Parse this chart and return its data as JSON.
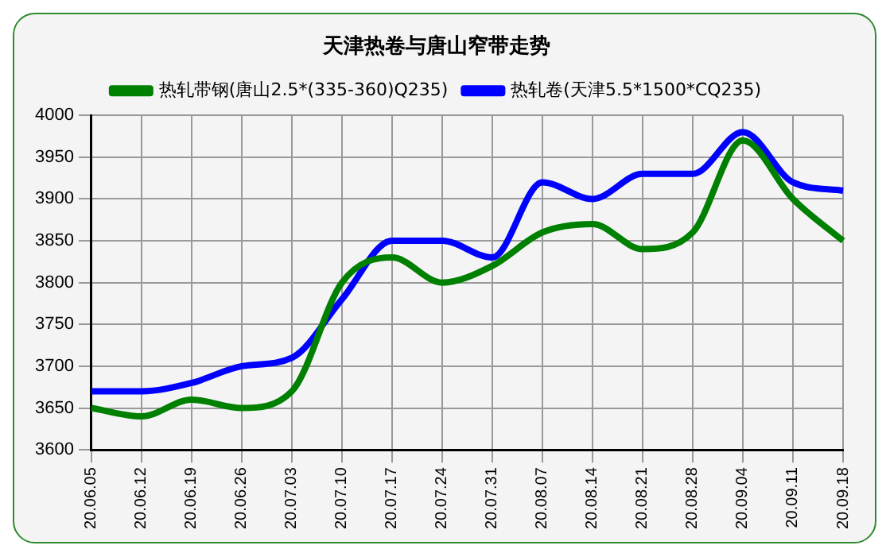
{
  "chart_data": {
    "type": "line",
    "title": "天津热卷与唐山窄带走势",
    "categories": [
      "20.06.05",
      "20.06.12",
      "20.06.19",
      "20.06.26",
      "20.07.03",
      "20.07.10",
      "20.07.17",
      "20.07.24",
      "20.07.31",
      "20.08.07",
      "20.08.14",
      "20.08.21",
      "20.08.28",
      "20.09.04",
      "20.09.11",
      "20.09.18"
    ],
    "series": [
      {
        "name": "热轧带钢(唐山2.5*(335-360)Q235)",
        "color": "#008000",
        "values": [
          3650,
          3640,
          3660,
          3650,
          3670,
          3800,
          3830,
          3800,
          3820,
          3860,
          3870,
          3840,
          3860,
          3970,
          3900,
          3850
        ]
      },
      {
        "name": "热轧卷(天津5.5*1500*CQ235)",
        "color": "#0000ff",
        "values": [
          3670,
          3670,
          3680,
          3700,
          3710,
          3780,
          3850,
          3850,
          3830,
          3920,
          3900,
          3930,
          3930,
          3980,
          3920,
          3910
        ]
      }
    ],
    "ylim": [
      3600,
      4000
    ],
    "yticks": [
      3600,
      3650,
      3700,
      3750,
      3800,
      3850,
      3900,
      3950,
      4000
    ],
    "grid": true,
    "legend": "top",
    "marker": "none",
    "line_style": "solid"
  }
}
